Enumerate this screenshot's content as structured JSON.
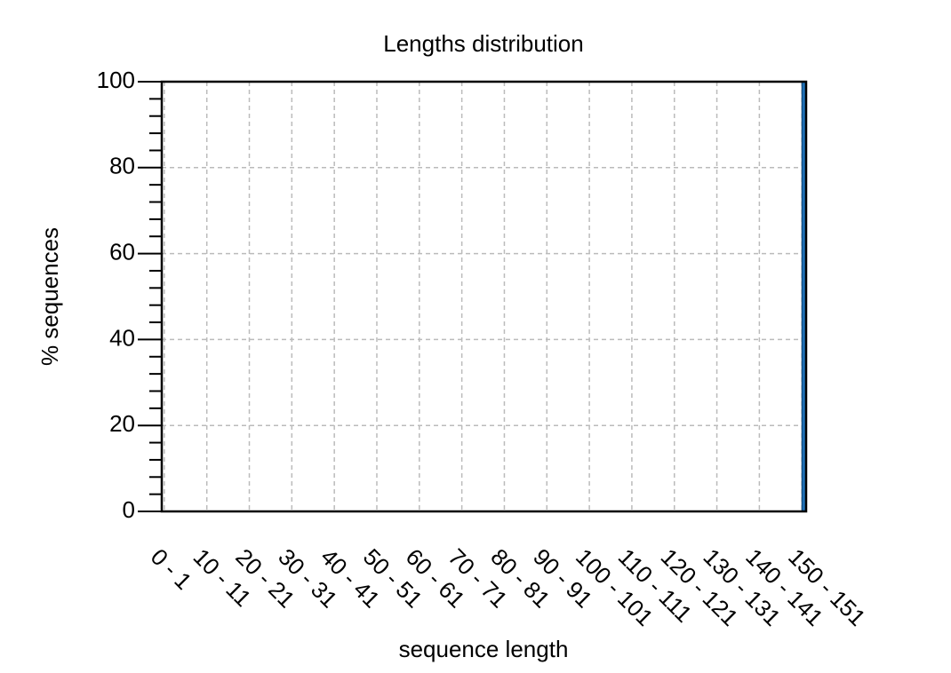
{
  "chart_data": {
    "type": "histogram",
    "title": "Lengths distribution",
    "x_label": "sequence length",
    "y_label": "% sequences",
    "bins": [
      150,
      151
    ],
    "values": [
      100
    ],
    "color": "#1f6fb4",
    "xlim": [
      -0.6,
      151
    ],
    "xticks": [
      {
        "value": 0,
        "label": "0 - 1"
      },
      {
        "value": 10,
        "label": "10 - 11"
      },
      {
        "value": 20,
        "label": "20 - 21"
      },
      {
        "value": 30,
        "label": "30 - 31"
      },
      {
        "value": 40,
        "label": "40 - 41"
      },
      {
        "value": 50,
        "label": "50 - 51"
      },
      {
        "value": 60,
        "label": "60 - 61"
      },
      {
        "value": 70,
        "label": "70 - 71"
      },
      {
        "value": 80,
        "label": "80 - 81"
      },
      {
        "value": 90,
        "label": "90 - 91"
      },
      {
        "value": 100,
        "label": "100 - 101"
      },
      {
        "value": 110,
        "label": "110 - 111"
      },
      {
        "value": 120,
        "label": "120 - 121"
      },
      {
        "value": 130,
        "label": "130 - 131"
      },
      {
        "value": 140,
        "label": "140 - 141"
      },
      {
        "value": 150,
        "label": "150 - 151"
      }
    ],
    "ylim": [
      0,
      100
    ],
    "yticks": [
      0,
      20,
      40,
      60,
      80,
      100
    ],
    "yminorticks": [
      4,
      8,
      12,
      16,
      24,
      28,
      32,
      36,
      44,
      48,
      52,
      56,
      64,
      68,
      72,
      76,
      84,
      88,
      92,
      96
    ],
    "grid": true
  }
}
